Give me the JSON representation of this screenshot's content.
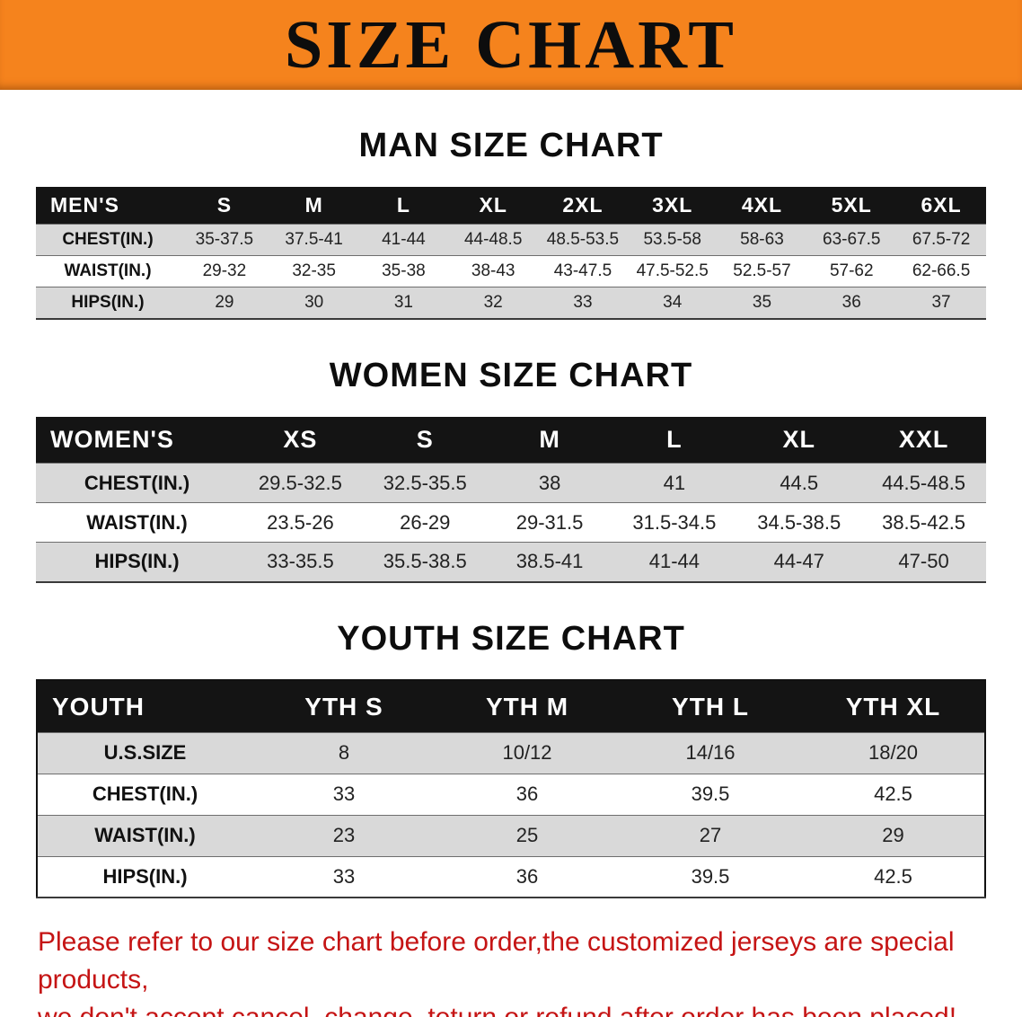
{
  "banner": {
    "title": "SIZE CHART"
  },
  "colors": {
    "banner_bg": "#f5831d",
    "table_header_bg": "#141414",
    "row_alt_bg": "#d9d9d9",
    "footer_text": "#c51414"
  },
  "sections": [
    {
      "heading": "MAN SIZE CHART",
      "table": {
        "label": "MEN'S",
        "columns": [
          "S",
          "M",
          "L",
          "XL",
          "2XL",
          "3XL",
          "4XL",
          "5XL",
          "6XL"
        ],
        "rows": [
          {
            "label": "CHEST(IN.)",
            "values": [
              "35-37.5",
              "37.5-41",
              "41-44",
              "44-48.5",
              "48.5-53.5",
              "53.5-58",
              "58-63",
              "63-67.5",
              "67.5-72"
            ]
          },
          {
            "label": "WAIST(IN.)",
            "values": [
              "29-32",
              "32-35",
              "35-38",
              "38-43",
              "43-47.5",
              "47.5-52.5",
              "52.5-57",
              "57-62",
              "62-66.5"
            ]
          },
          {
            "label": "HIPS(IN.)",
            "values": [
              "29",
              "30",
              "31",
              "32",
              "33",
              "34",
              "35",
              "36",
              "37"
            ]
          }
        ]
      }
    },
    {
      "heading": "WOMEN SIZE CHART",
      "table": {
        "label": "WOMEN'S",
        "columns": [
          "XS",
          "S",
          "M",
          "L",
          "XL",
          "XXL"
        ],
        "rows": [
          {
            "label": "CHEST(IN.)",
            "values": [
              "29.5-32.5",
              "32.5-35.5",
              "38",
              "41",
              "44.5",
              "44.5-48.5"
            ]
          },
          {
            "label": "WAIST(IN.)",
            "values": [
              "23.5-26",
              "26-29",
              "29-31.5",
              "31.5-34.5",
              "34.5-38.5",
              "38.5-42.5"
            ]
          },
          {
            "label": "HIPS(IN.)",
            "values": [
              "33-35.5",
              "35.5-38.5",
              "38.5-41",
              "41-44",
              "44-47",
              "47-50"
            ]
          }
        ]
      }
    },
    {
      "heading": "YOUTH SIZE CHART",
      "table": {
        "label": "YOUTH",
        "columns": [
          "YTH S",
          "YTH M",
          "YTH L",
          "YTH XL"
        ],
        "rows": [
          {
            "label": "U.S.SIZE",
            "values": [
              "8",
              "10/12",
              "14/16",
              "18/20"
            ]
          },
          {
            "label": "CHEST(IN.)",
            "values": [
              "33",
              "36",
              "39.5",
              "42.5"
            ]
          },
          {
            "label": "WAIST(IN.)",
            "values": [
              "23",
              "25",
              "27",
              "29"
            ]
          },
          {
            "label": "HIPS(IN.)",
            "values": [
              "33",
              "36",
              "39.5",
              "42.5"
            ]
          }
        ]
      }
    }
  ],
  "footer": {
    "line1": "Please refer to our size chart before order,the customized jerseys are special products,",
    "line2": "we don't accept cancel, change, teturn or refund after order has been placed!"
  }
}
